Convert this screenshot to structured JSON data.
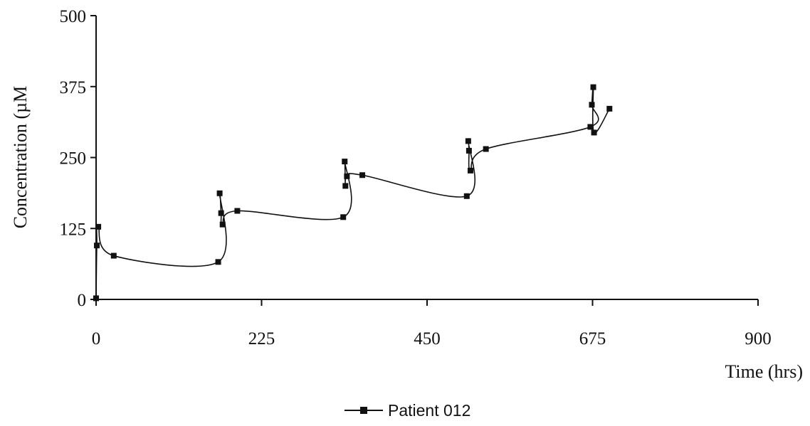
{
  "chart_data": {
    "type": "line",
    "title": "",
    "xlabel": "Time (hrs)",
    "ylabel": "Concentration (µM",
    "xlim": [
      0,
      900
    ],
    "ylim": [
      0,
      500
    ],
    "x_ticks": [
      "0",
      "225",
      "450",
      "675",
      "900"
    ],
    "y_ticks": [
      "0",
      "125",
      "250",
      "375",
      "500"
    ],
    "grid": false,
    "legend_position": "bottom-center",
    "series": [
      {
        "name": "Patient 012",
        "marker": "square",
        "color": "#111111",
        "points": [
          {
            "x": 0,
            "y": 2
          },
          {
            "x": 1,
            "y": 95
          },
          {
            "x": 3,
            "y": 128
          },
          {
            "x": 24,
            "y": 77
          },
          {
            "x": 166,
            "y": 66
          },
          {
            "x": 168,
            "y": 187
          },
          {
            "x": 170,
            "y": 152
          },
          {
            "x": 172,
            "y": 132
          },
          {
            "x": 192,
            "y": 156
          },
          {
            "x": 336,
            "y": 145
          },
          {
            "x": 338,
            "y": 243
          },
          {
            "x": 339,
            "y": 200
          },
          {
            "x": 341,
            "y": 217
          },
          {
            "x": 362,
            "y": 219
          },
          {
            "x": 504,
            "y": 182
          },
          {
            "x": 506,
            "y": 279
          },
          {
            "x": 507,
            "y": 262
          },
          {
            "x": 509,
            "y": 227
          },
          {
            "x": 530,
            "y": 265
          },
          {
            "x": 672,
            "y": 304
          },
          {
            "x": 674,
            "y": 343
          },
          {
            "x": 676,
            "y": 374
          },
          {
            "x": 677,
            "y": 294
          },
          {
            "x": 698,
            "y": 336
          }
        ]
      }
    ]
  }
}
